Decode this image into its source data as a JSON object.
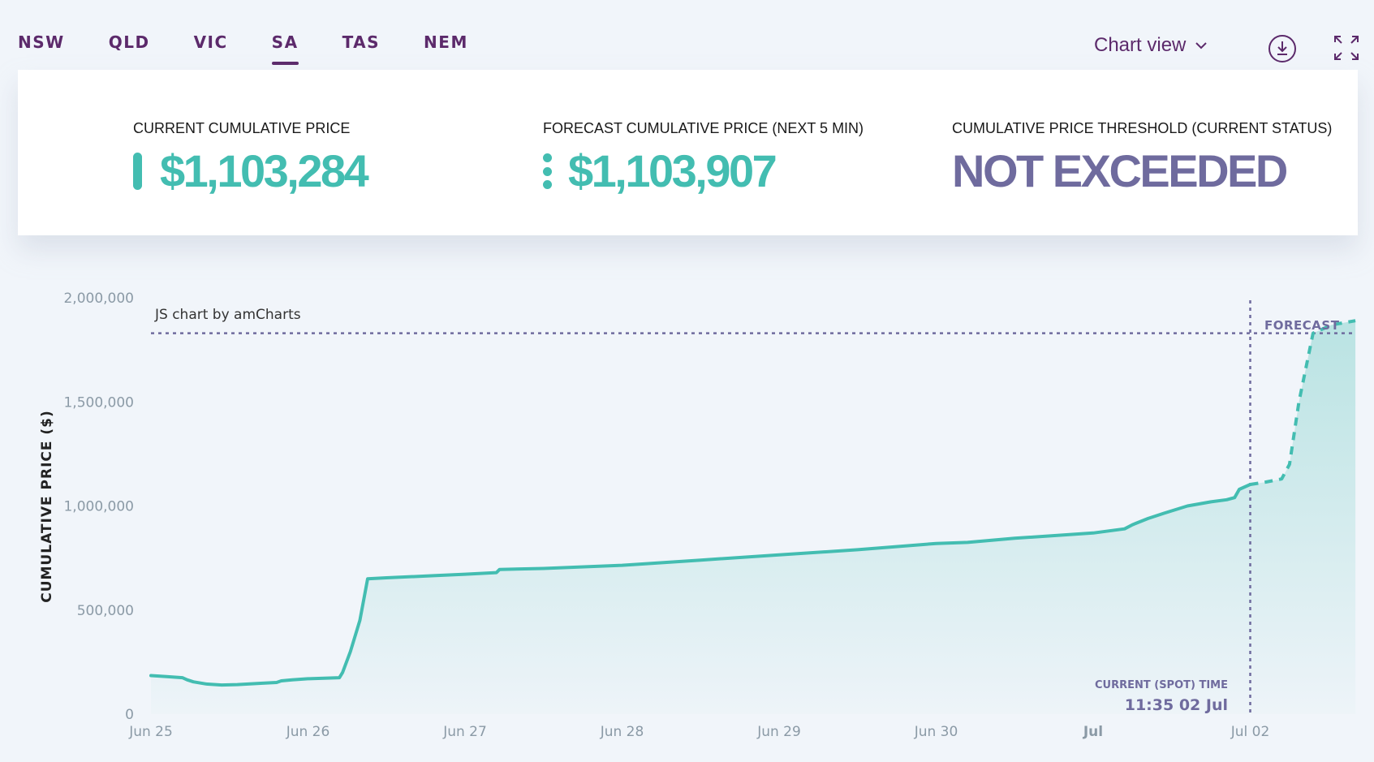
{
  "tabs": [
    {
      "label": "NSW",
      "active": false
    },
    {
      "label": "QLD",
      "active": false
    },
    {
      "label": "VIC",
      "active": false
    },
    {
      "label": "SA",
      "active": true
    },
    {
      "label": "TAS",
      "active": false
    },
    {
      "label": "NEM",
      "active": false
    }
  ],
  "view_selector": {
    "label": "Chart view",
    "icon": "chevron-down-icon"
  },
  "toolbar": {
    "download_icon": "download-icon",
    "fullscreen_icon": "expand-icon"
  },
  "stats": {
    "current": {
      "label": "CURRENT CUMULATIVE PRICE",
      "value": "$1,103,284"
    },
    "forecast": {
      "label": "FORECAST CUMULATIVE PRICE (NEXT 5 MIN)",
      "value": "$1,103,907"
    },
    "threshold": {
      "label": "CUMULATIVE PRICE THRESHOLD (CURRENT STATUS)",
      "value": "NOT EXCEEDED"
    }
  },
  "colors": {
    "accent": "#43bdb1",
    "brand": "#5c2a6b",
    "status": "#6f6b9e"
  },
  "chart_data": {
    "type": "area",
    "watermark": "JS chart by amCharts",
    "ylabel": "CUMULATIVE PRICE ($)",
    "ylim": [
      0,
      2000000
    ],
    "yticks": [
      0,
      500000,
      1000000,
      1500000,
      2000000
    ],
    "ytick_labels": [
      "0",
      "500,000",
      "1,000,000",
      "1,500,000",
      "2,000,000"
    ],
    "xlim": [
      0,
      7.67
    ],
    "xticks": [
      {
        "x": 0,
        "label": "Jun 25",
        "bold": false
      },
      {
        "x": 1,
        "label": "Jun 26",
        "bold": false
      },
      {
        "x": 2,
        "label": "Jun 27",
        "bold": false
      },
      {
        "x": 3,
        "label": "Jun 28",
        "bold": false
      },
      {
        "x": 4,
        "label": "Jun 29",
        "bold": false
      },
      {
        "x": 5,
        "label": "Jun 30",
        "bold": false
      },
      {
        "x": 6,
        "label": "Jul",
        "bold": true
      },
      {
        "x": 7,
        "label": "Jul 02",
        "bold": false
      }
    ],
    "threshold_value": 1830000,
    "current_time_x": 7.0,
    "forecast_label": "FORECAST",
    "current_time_label": "CURRENT (SPOT) TIME",
    "current_time_value": "11:35 02 Jul",
    "grid": false,
    "series": [
      {
        "kind": "actual",
        "points": [
          [
            0,
            185000
          ],
          [
            0.1,
            180000
          ],
          [
            0.2,
            175000
          ],
          [
            0.23,
            165000
          ],
          [
            0.27,
            155000
          ],
          [
            0.35,
            145000
          ],
          [
            0.45,
            140000
          ],
          [
            0.55,
            142000
          ],
          [
            0.7,
            148000
          ],
          [
            0.8,
            152000
          ],
          [
            0.83,
            160000
          ],
          [
            0.9,
            165000
          ],
          [
            1.0,
            170000
          ],
          [
            1.2,
            175000
          ],
          [
            1.22,
            200000
          ],
          [
            1.27,
            300000
          ],
          [
            1.33,
            450000
          ],
          [
            1.38,
            650000
          ],
          [
            1.5,
            655000
          ],
          [
            1.8,
            665000
          ],
          [
            2.0,
            672000
          ],
          [
            2.2,
            680000
          ],
          [
            2.22,
            695000
          ],
          [
            2.5,
            700000
          ],
          [
            3.0,
            715000
          ],
          [
            3.5,
            740000
          ],
          [
            4.0,
            765000
          ],
          [
            4.5,
            790000
          ],
          [
            5.0,
            820000
          ],
          [
            5.2,
            825000
          ],
          [
            5.5,
            845000
          ],
          [
            6.0,
            870000
          ],
          [
            6.2,
            890000
          ],
          [
            6.25,
            910000
          ],
          [
            6.35,
            940000
          ],
          [
            6.45,
            965000
          ],
          [
            6.6,
            1000000
          ],
          [
            6.75,
            1020000
          ],
          [
            6.85,
            1030000
          ],
          [
            6.9,
            1040000
          ],
          [
            6.93,
            1080000
          ],
          [
            7.0,
            1103284
          ]
        ]
      },
      {
        "kind": "forecast",
        "points": [
          [
            7.0,
            1103284
          ],
          [
            7.1,
            1115000
          ],
          [
            7.2,
            1130000
          ],
          [
            7.25,
            1200000
          ],
          [
            7.31,
            1500000
          ],
          [
            7.4,
            1830000
          ],
          [
            7.52,
            1870000
          ],
          [
            7.67,
            1890000
          ]
        ]
      }
    ]
  }
}
